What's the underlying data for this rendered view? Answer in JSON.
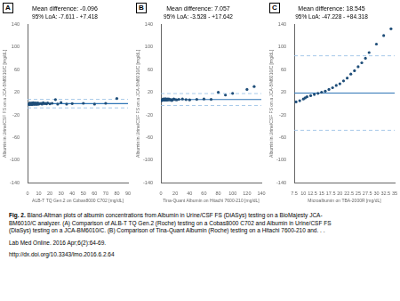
{
  "chart_data": [
    {
      "type": "scatter",
      "title": "Mean difference: -0.096",
      "subtitle": "95% LoA: -7.611 - +7.418",
      "x_label": "ALB-T TQ Gen.2 on Cobas8000 C702 [mg/dL]",
      "y_label": "Albumin in Urine/CSF FS on a JCA-BM6010/C [mg/dL]",
      "x": [
        1,
        2,
        2,
        3,
        3,
        4,
        4,
        5,
        5,
        5,
        6,
        6,
        6,
        7,
        7,
        7,
        8,
        8,
        9,
        9,
        10,
        10,
        11,
        12,
        13,
        14,
        15,
        16,
        17,
        18,
        20,
        22,
        25,
        27,
        30,
        35,
        40,
        50,
        60,
        70,
        80
      ],
      "values": [
        -1.5,
        -2,
        1,
        -1.2,
        0.5,
        -1.8,
        1.2,
        -1,
        0,
        1.5,
        -1.5,
        -0.5,
        0.8,
        -1,
        0,
        1,
        -1.5,
        0.5,
        -1,
        1,
        0.5,
        -1,
        0,
        0.5,
        -1,
        1.5,
        0,
        0.5,
        -0.5,
        1,
        -0.5,
        0.5,
        7,
        -1,
        2,
        -1,
        0,
        0.5,
        -1,
        0.5,
        9
      ],
      "color": "#1f4e79",
      "hlines": [
        {
          "value": -0.096,
          "color": "#2e75b6",
          "line_style": "solid"
        },
        {
          "value": 7.418,
          "color": "#9dc3e6",
          "line_style": "dashed"
        },
        {
          "value": -7.611,
          "color": "#9dc3e6",
          "line_style": "dashed"
        }
      ],
      "xlim": [
        0,
        90
      ],
      "ylim": [
        -140,
        140
      ],
      "xticks": [
        0,
        10,
        20,
        30,
        40,
        50,
        60,
        70,
        80,
        90
      ],
      "yticks": [
        -140,
        -100,
        -60,
        -20,
        20,
        60,
        100,
        140
      ],
      "grid": false,
      "annotations": [
        "A"
      ]
    },
    {
      "type": "scatter",
      "title": "Mean difference: 7.057",
      "subtitle": "95% LoA: -3.528 - +17.642",
      "x_label": "Tina-Quant Albumin on Hitachi 7600-210 [mg/dL]",
      "y_label": "Albumin in Urine/CSF FS on a JCA-BM6010/C [mg/dL]",
      "x": [
        1,
        2,
        3,
        3,
        4,
        4,
        5,
        5,
        5,
        6,
        6,
        6,
        7,
        7,
        8,
        8,
        9,
        9,
        10,
        10,
        11,
        12,
        13,
        14,
        15,
        16,
        17,
        18,
        20,
        22,
        25,
        30,
        35,
        40,
        50,
        60,
        70,
        80,
        90,
        100,
        120,
        130
      ],
      "values": [
        5,
        6,
        7.5,
        8,
        6,
        7.5,
        8,
        7,
        6.5,
        7,
        8,
        6,
        7.5,
        8,
        7,
        6,
        8,
        7,
        6.5,
        7,
        8,
        7,
        6.5,
        7,
        5.5,
        6,
        7.5,
        8,
        7,
        6.5,
        7.5,
        8,
        7,
        6.5,
        7.5,
        8,
        7.5,
        20,
        15,
        18,
        25,
        30
      ],
      "color": "#1f4e79",
      "hlines": [
        {
          "value": 7.057,
          "color": "#2e75b6",
          "line_style": "solid"
        },
        {
          "value": 17.642,
          "color": "#9dc3e6",
          "line_style": "dashed"
        },
        {
          "value": -3.528,
          "color": "#9dc3e6",
          "line_style": "dashed"
        }
      ],
      "xlim": [
        0,
        140
      ],
      "ylim": [
        -140,
        140
      ],
      "xticks": [
        0,
        20,
        40,
        60,
        80,
        100,
        120,
        140
      ],
      "yticks": [
        -140,
        -100,
        -60,
        -20,
        20,
        60,
        100,
        140
      ],
      "grid": false,
      "annotations": [
        "B"
      ]
    },
    {
      "type": "scatter",
      "title": "Mean difference: 18.545",
      "subtitle": "95% LoA: -47.228 - +84.318",
      "x_label": "Microalbumin on TBA-2000R [mg/dL]",
      "y_label": "Albumin in Urine/CSF FS on a JCA-BM6010/C [mg/dL]",
      "x": [
        8,
        9,
        10,
        10.5,
        11,
        12,
        13,
        14,
        15,
        16,
        17,
        18,
        19,
        20,
        21,
        22,
        23,
        24,
        25,
        26,
        27,
        28,
        30,
        32,
        34
      ],
      "values": [
        3,
        5,
        8,
        10,
        12,
        14,
        16,
        18,
        20,
        22,
        25,
        28,
        32,
        35,
        40,
        45,
        52,
        58,
        65,
        72,
        80,
        90,
        105,
        120,
        132
      ],
      "color": "#1f4e79",
      "hlines": [
        {
          "value": 18.545,
          "color": "#2e75b6",
          "line_style": "solid"
        },
        {
          "value": 84.318,
          "color": "#9dc3e6",
          "line_style": "dashed"
        },
        {
          "value": -47.228,
          "color": "#9dc3e6",
          "line_style": "dashed"
        }
      ],
      "xlim": [
        7.5,
        35
      ],
      "ylim": [
        -140,
        140
      ],
      "xticks": [
        7.5,
        10,
        12.5,
        15,
        17.5,
        20,
        22.5,
        25,
        27.5,
        30,
        32.5,
        35
      ],
      "yticks": [
        -140,
        -100,
        -60,
        -20,
        20,
        60,
        100,
        140
      ],
      "grid": false,
      "annotations": [
        "C"
      ]
    }
  ],
  "annotations": [
    "Fig. 2.",
    " Bland-Altman plots of albumin concentrations from Albumin in Urine/CSF FS (DiASys) testing on a BioMajesty JCA-\nBM6010/C analyzer. (A) Comparison of ALB-T TQ Gen.2 (Roche) testing on a Cobas8000 C702 and Albumin in Urine/CSF FS\n(DiaSys) testing on a JCA-BM6010/C. (B) Comparison of Tina-Quant Albumin (Roche) testing on a Hitachi 7600-210 and. . .",
    "Lab Med Online. 2016 Apr;6(2):64-69.",
    "http://dx.doi.org/10.3343/lmo.2016.6.2.64"
  ]
}
